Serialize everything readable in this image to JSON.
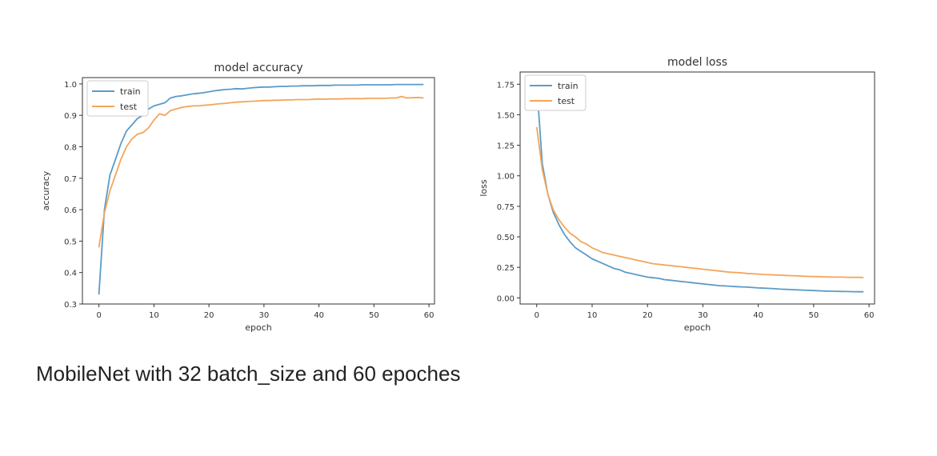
{
  "caption": "MobileNet with 32 batch_size and 60 epoches",
  "colors": {
    "train": "#5b9bc8",
    "test": "#f4a55a",
    "axis": "#333333",
    "text": "#333333"
  },
  "chart_data": [
    {
      "type": "line",
      "title": "model accuracy",
      "xlabel": "epoch",
      "ylabel": "accuracy",
      "xlim": [
        -3,
        61
      ],
      "ylim": [
        0.3,
        1.02
      ],
      "xticks": [
        0,
        10,
        20,
        30,
        40,
        50,
        60
      ],
      "yticks": [
        0.3,
        0.4,
        0.5,
        0.6,
        0.7,
        0.8,
        0.9,
        1.0
      ],
      "ytick_labels": [
        "0.3",
        "0.4",
        "0.5",
        "0.6",
        "0.7",
        "0.8",
        "0.9",
        "1.0"
      ],
      "legend": "top-left",
      "x": [
        0,
        1,
        2,
        3,
        4,
        5,
        6,
        7,
        8,
        9,
        10,
        11,
        12,
        13,
        14,
        15,
        16,
        17,
        18,
        19,
        20,
        21,
        22,
        23,
        24,
        25,
        26,
        27,
        28,
        29,
        30,
        31,
        32,
        33,
        34,
        35,
        36,
        37,
        38,
        39,
        40,
        41,
        42,
        43,
        44,
        45,
        46,
        47,
        48,
        49,
        50,
        51,
        52,
        53,
        54,
        55,
        56,
        57,
        58,
        59
      ],
      "series": [
        {
          "name": "train",
          "color": "#5b9bc8",
          "values": [
            0.33,
            0.6,
            0.71,
            0.76,
            0.81,
            0.85,
            0.87,
            0.89,
            0.9,
            0.92,
            0.93,
            0.935,
            0.94,
            0.955,
            0.96,
            0.962,
            0.965,
            0.968,
            0.97,
            0.972,
            0.975,
            0.978,
            0.98,
            0.982,
            0.983,
            0.985,
            0.984,
            0.986,
            0.988,
            0.989,
            0.99,
            0.99,
            0.991,
            0.992,
            0.992,
            0.993,
            0.993,
            0.994,
            0.994,
            0.994,
            0.995,
            0.995,
            0.995,
            0.996,
            0.996,
            0.996,
            0.996,
            0.996,
            0.997,
            0.997,
            0.997,
            0.997,
            0.997,
            0.997,
            0.998,
            0.998,
            0.998,
            0.998,
            0.998,
            0.998
          ]
        },
        {
          "name": "test",
          "color": "#f4a55a",
          "values": [
            0.48,
            0.59,
            0.66,
            0.71,
            0.76,
            0.8,
            0.825,
            0.84,
            0.845,
            0.86,
            0.885,
            0.905,
            0.9,
            0.915,
            0.92,
            0.925,
            0.928,
            0.93,
            0.93,
            0.932,
            0.933,
            0.935,
            0.937,
            0.938,
            0.94,
            0.942,
            0.943,
            0.944,
            0.945,
            0.946,
            0.947,
            0.947,
            0.948,
            0.948,
            0.949,
            0.949,
            0.95,
            0.95,
            0.95,
            0.951,
            0.952,
            0.951,
            0.952,
            0.952,
            0.952,
            0.953,
            0.953,
            0.953,
            0.953,
            0.954,
            0.954,
            0.954,
            0.954,
            0.955,
            0.955,
            0.96,
            0.955,
            0.956,
            0.957,
            0.955
          ]
        }
      ]
    },
    {
      "type": "line",
      "title": "model loss",
      "xlabel": "epoch",
      "ylabel": "loss",
      "xlim": [
        -3,
        61
      ],
      "ylim": [
        -0.05,
        1.85
      ],
      "xticks": [
        0,
        10,
        20,
        30,
        40,
        50,
        60
      ],
      "yticks": [
        0.0,
        0.25,
        0.5,
        0.75,
        1.0,
        1.25,
        1.5,
        1.75
      ],
      "ytick_labels": [
        "0.00",
        "0.25",
        "0.50",
        "0.75",
        "1.00",
        "1.25",
        "1.50",
        "1.75"
      ],
      "legend": "top-left",
      "x": [
        0,
        1,
        2,
        3,
        4,
        5,
        6,
        7,
        8,
        9,
        10,
        11,
        12,
        13,
        14,
        15,
        16,
        17,
        18,
        19,
        20,
        21,
        22,
        23,
        24,
        25,
        26,
        27,
        28,
        29,
        30,
        31,
        32,
        33,
        34,
        35,
        36,
        37,
        38,
        39,
        40,
        41,
        42,
        43,
        44,
        45,
        46,
        47,
        48,
        49,
        50,
        51,
        52,
        53,
        54,
        55,
        56,
        57,
        58,
        59
      ],
      "series": [
        {
          "name": "train",
          "color": "#5b9bc8",
          "values": [
            1.75,
            1.1,
            0.85,
            0.7,
            0.6,
            0.52,
            0.46,
            0.41,
            0.38,
            0.35,
            0.32,
            0.3,
            0.28,
            0.26,
            0.24,
            0.23,
            0.21,
            0.2,
            0.19,
            0.18,
            0.17,
            0.165,
            0.16,
            0.15,
            0.145,
            0.14,
            0.135,
            0.13,
            0.125,
            0.12,
            0.115,
            0.11,
            0.105,
            0.1,
            0.098,
            0.095,
            0.092,
            0.09,
            0.088,
            0.085,
            0.082,
            0.08,
            0.078,
            0.075,
            0.072,
            0.07,
            0.068,
            0.066,
            0.064,
            0.062,
            0.06,
            0.058,
            0.056,
            0.055,
            0.054,
            0.053,
            0.052,
            0.051,
            0.05,
            0.05
          ]
        },
        {
          "name": "test",
          "color": "#f4a55a",
          "values": [
            1.4,
            1.05,
            0.85,
            0.72,
            0.64,
            0.58,
            0.53,
            0.5,
            0.46,
            0.44,
            0.41,
            0.39,
            0.37,
            0.36,
            0.35,
            0.34,
            0.33,
            0.32,
            0.31,
            0.3,
            0.29,
            0.28,
            0.275,
            0.27,
            0.265,
            0.26,
            0.255,
            0.25,
            0.245,
            0.24,
            0.235,
            0.23,
            0.225,
            0.22,
            0.215,
            0.21,
            0.208,
            0.205,
            0.2,
            0.198,
            0.195,
            0.192,
            0.19,
            0.188,
            0.186,
            0.184,
            0.182,
            0.18,
            0.178,
            0.176,
            0.175,
            0.174,
            0.172,
            0.171,
            0.17,
            0.17,
            0.169,
            0.168,
            0.168,
            0.167
          ]
        }
      ]
    }
  ]
}
